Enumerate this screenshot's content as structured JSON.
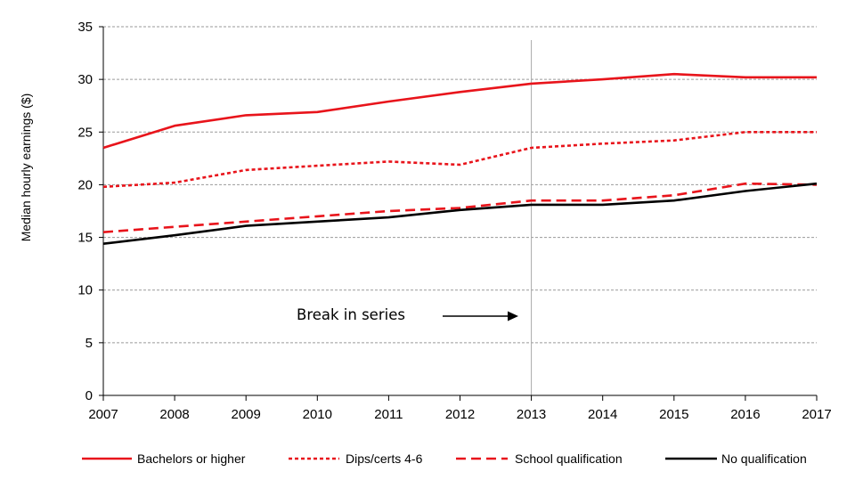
{
  "chart_data": {
    "type": "line",
    "ylabel": "Median hourly earnings ($)",
    "xlabel": "",
    "x": [
      "2007",
      "2008",
      "2009",
      "2010",
      "2011",
      "2012",
      "2013",
      "2014",
      "2015",
      "2016",
      "2017"
    ],
    "ylim": [
      0,
      35
    ],
    "yticks": [
      "0",
      "5",
      "10",
      "15",
      "20",
      "25",
      "30",
      "35"
    ],
    "grid": "horizontal dashed",
    "legend_position": "bottom",
    "annotation": {
      "text": "Break  in series",
      "at_x": "2013"
    },
    "series": [
      {
        "name": "Bachelors or higher",
        "style": "solid",
        "color": "#e8141b",
        "values": [
          23.5,
          25.6,
          26.6,
          26.9,
          27.9,
          28.8,
          29.6,
          30.0,
          30.5,
          30.2,
          30.2
        ]
      },
      {
        "name": "Dips/certs 4-6",
        "style": "dotted",
        "color": "#e8141b",
        "values": [
          19.8,
          20.2,
          21.4,
          21.8,
          22.2,
          21.9,
          23.5,
          23.9,
          24.2,
          25.0,
          25.0
        ]
      },
      {
        "name": "School qualification",
        "style": "dashed",
        "color": "#e8141b",
        "values": [
          15.5,
          16.0,
          16.5,
          17.0,
          17.5,
          17.8,
          18.5,
          18.5,
          19.0,
          20.1,
          20.0
        ]
      },
      {
        "name": "No qualification",
        "style": "solid",
        "color": "#000000",
        "values": [
          14.4,
          15.2,
          16.1,
          16.5,
          16.9,
          17.6,
          18.1,
          18.1,
          18.5,
          19.4,
          20.1
        ]
      }
    ]
  }
}
